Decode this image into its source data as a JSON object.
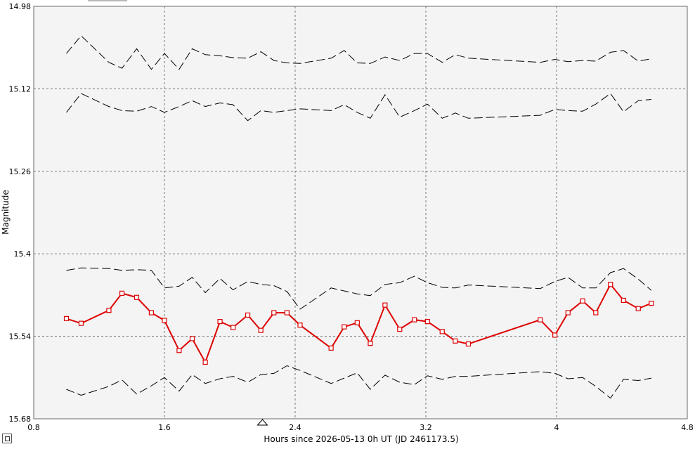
{
  "chart_data": {
    "type": "line",
    "title": "",
    "xlabel": "Hours since 2026-05-13 0h UT (JD 2461173.5)",
    "ylabel": "Magnitude",
    "xlim": [
      0.8,
      4.8
    ],
    "ylim": [
      14.98,
      15.68
    ],
    "y_inverted": true,
    "grid": true,
    "x_ticks": [
      "0.8",
      "1.6",
      "2.4",
      "3.2",
      "4",
      "4.8"
    ],
    "y_ticks": [
      "14.98",
      "15.12",
      "15.26",
      "15.4",
      "15.54",
      "15.68"
    ],
    "x_marker": 2.2,
    "colors": {
      "target": "#dd0000",
      "comparison": "#000000",
      "plot_bg": "#f4f4f4",
      "grid": "#777777"
    },
    "series": [
      {
        "role": "target",
        "x": [
          1.0,
          1.09,
          1.26,
          1.34,
          1.43,
          1.52,
          1.6,
          1.69,
          1.77,
          1.85,
          1.94,
          2.02,
          2.11,
          2.19,
          2.27,
          2.35,
          2.43,
          2.62,
          2.7,
          2.78,
          2.86,
          2.95,
          3.04,
          3.13,
          3.21,
          3.3,
          3.38,
          3.46,
          3.9,
          3.99,
          4.07,
          4.16,
          4.24,
          4.33,
          4.41,
          4.5,
          4.58
        ],
        "y": [
          15.51,
          15.518,
          15.496,
          15.467,
          15.474,
          15.5,
          15.513,
          15.564,
          15.544,
          15.584,
          15.515,
          15.525,
          15.504,
          15.53,
          15.5,
          15.5,
          15.521,
          15.56,
          15.524,
          15.517,
          15.552,
          15.487,
          15.528,
          15.512,
          15.515,
          15.532,
          15.548,
          15.553,
          15.512,
          15.538,
          15.5,
          15.48,
          15.5,
          15.452,
          15.479,
          15.493,
          15.484
        ]
      },
      {
        "role": "comparison",
        "x": [
          1.0,
          1.09,
          1.26,
          1.34,
          1.43,
          1.52,
          1.6,
          1.69,
          1.77,
          1.85,
          1.94,
          2.02,
          2.11,
          2.19,
          2.27,
          2.35,
          2.43,
          2.62,
          2.7,
          2.78,
          2.86,
          2.95,
          3.04,
          3.13,
          3.21,
          3.3,
          3.38,
          3.46,
          3.9,
          3.99,
          4.07,
          4.16,
          4.24,
          4.33,
          4.41,
          4.5,
          4.58
        ],
        "y": [
          15.06,
          15.03,
          15.075,
          15.085,
          15.052,
          15.087,
          15.06,
          15.087,
          15.052,
          15.062,
          15.064,
          15.067,
          15.068,
          15.057,
          15.072,
          15.076,
          15.077,
          15.068,
          15.055,
          15.076,
          15.077,
          15.066,
          15.072,
          15.06,
          15.06,
          15.075,
          15.062,
          15.068,
          15.075,
          15.07,
          15.074,
          15.072,
          15.073,
          15.058,
          15.055,
          15.073,
          15.069
        ]
      },
      {
        "role": "comparison",
        "x": [
          1.0,
          1.09,
          1.26,
          1.34,
          1.43,
          1.52,
          1.6,
          1.69,
          1.77,
          1.85,
          1.94,
          2.02,
          2.11,
          2.19,
          2.27,
          2.35,
          2.43,
          2.62,
          2.7,
          2.78,
          2.86,
          2.95,
          3.04,
          3.13,
          3.21,
          3.3,
          3.38,
          3.46,
          3.9,
          3.99,
          4.07,
          4.16,
          4.24,
          4.33,
          4.41,
          4.5,
          4.58
        ],
        "y": [
          15.16,
          15.128,
          15.15,
          15.157,
          15.158,
          15.15,
          15.16,
          15.15,
          15.14,
          15.15,
          15.144,
          15.147,
          15.174,
          15.157,
          15.16,
          15.157,
          15.154,
          15.157,
          15.147,
          15.16,
          15.17,
          15.13,
          15.168,
          15.157,
          15.146,
          15.17,
          15.161,
          15.17,
          15.165,
          15.155,
          15.157,
          15.158,
          15.146,
          15.128,
          15.159,
          15.14,
          15.138
        ]
      },
      {
        "role": "comparison",
        "x": [
          1.0,
          1.09,
          1.26,
          1.34,
          1.43,
          1.52,
          1.6,
          1.69,
          1.77,
          1.85,
          1.94,
          2.02,
          2.11,
          2.19,
          2.27,
          2.35,
          2.43,
          2.62,
          2.7,
          2.78,
          2.86,
          2.95,
          3.04,
          3.13,
          3.21,
          3.3,
          3.38,
          3.46,
          3.9,
          3.99,
          4.07,
          4.16,
          4.24,
          4.33,
          4.41,
          4.5,
          4.58
        ],
        "y": [
          15.428,
          15.424,
          15.425,
          15.428,
          15.427,
          15.428,
          15.458,
          15.455,
          15.44,
          15.466,
          15.442,
          15.461,
          15.447,
          15.452,
          15.454,
          15.464,
          15.494,
          15.458,
          15.463,
          15.468,
          15.471,
          15.452,
          15.449,
          15.438,
          15.449,
          15.457,
          15.458,
          15.453,
          15.459,
          15.447,
          15.44,
          15.458,
          15.458,
          15.432,
          15.425,
          15.443,
          15.462
        ]
      },
      {
        "role": "comparison",
        "x": [
          1.0,
          1.09,
          1.26,
          1.34,
          1.43,
          1.52,
          1.6,
          1.69,
          1.77,
          1.85,
          1.94,
          2.02,
          2.11,
          2.19,
          2.27,
          2.35,
          2.43,
          2.62,
          2.7,
          2.78,
          2.86,
          2.95,
          3.04,
          3.13,
          3.21,
          3.3,
          3.38,
          3.46,
          3.9,
          3.99,
          4.07,
          4.16,
          4.24,
          4.33,
          4.41,
          4.5,
          4.58
        ],
        "y": [
          15.63,
          15.64,
          15.625,
          15.614,
          15.638,
          15.624,
          15.61,
          15.633,
          15.605,
          15.62,
          15.612,
          15.608,
          15.618,
          15.605,
          15.603,
          15.59,
          15.598,
          15.62,
          15.611,
          15.602,
          15.63,
          15.606,
          15.618,
          15.622,
          15.607,
          15.613,
          15.608,
          15.608,
          15.6,
          15.603,
          15.612,
          15.61,
          15.625,
          15.645,
          15.613,
          15.615,
          15.611
        ]
      }
    ]
  },
  "controls": {
    "corner_button": ""
  }
}
